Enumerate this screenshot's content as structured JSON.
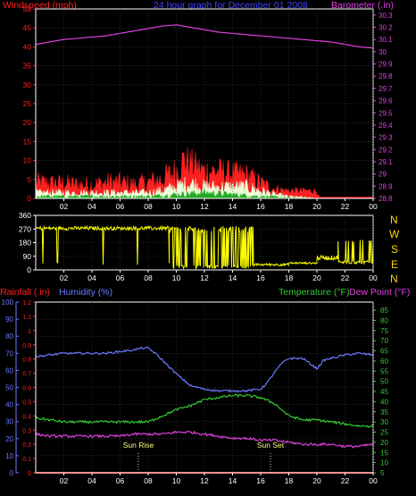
{
  "header": {
    "windspeed_label": "Windspeed (mph)",
    "title": "24 hour graph for  December 01 2008",
    "barometer_label": "Barometer (.in)"
  },
  "compass": {
    "letters": [
      "N",
      "W",
      "S",
      "E",
      "N"
    ]
  },
  "bottom_header": {
    "rainfall_label": "Rainfall (.in)",
    "humidity_label": "Humidity (%)",
    "temperature_label": "Temperature (°F)",
    "dewpoint_label": "Dew Point (°F)"
  },
  "events": {
    "sunrise": "Sun Rise",
    "sunset": "Sun Set"
  },
  "colors": {
    "background": "#000000",
    "windspeed": "#ff2020",
    "gust": "#ff2020",
    "wind_avg": "#e8ffd8",
    "wind_low": "#22aa22",
    "barometer": "#e040e0",
    "direction": "#ffff00",
    "humidity": "#6a78ff",
    "temperature": "#33cc33",
    "dewpoint": "#e040e0",
    "rainfall": "#ff2020",
    "grid": "#444444",
    "axis_frame": "#ffffff",
    "title": "#4040ff",
    "compass": "#ffd700",
    "event_label": "#ffff80"
  },
  "chart_data": [
    {
      "type": "line",
      "name": "wind-barometer",
      "x_unit": "hour",
      "x_ticks": [
        "02",
        "04",
        "06",
        "08",
        "10",
        "12",
        "14",
        "16",
        "18",
        "20",
        "22",
        "00"
      ],
      "x_tick_hours": [
        2,
        4,
        6,
        8,
        10,
        12,
        14,
        16,
        18,
        20,
        22,
        24
      ],
      "xlim": [
        0,
        24
      ],
      "left_axis": {
        "label": "Windspeed (mph)",
        "ticks": [
          0,
          5,
          10,
          15,
          20,
          25,
          30,
          35,
          40,
          45,
          50
        ],
        "ylim": [
          0,
          50
        ]
      },
      "right_axis": {
        "label": "Barometer (.in)",
        "ticks": [
          "28.8",
          "28.9",
          "29",
          "29.1",
          "29.2",
          "29.3",
          "29.4",
          "29.5",
          "29.6",
          "29.7",
          "29.8",
          "29.9",
          "30",
          "30.1",
          "30.2",
          "30.3"
        ],
        "ylim": [
          28.8,
          30.35
        ]
      },
      "series": [
        {
          "name": "Windspeed (mph)",
          "axis": "left",
          "style": "filled-noisy",
          "color_key": "gust",
          "x": [
            0,
            1,
            2,
            3,
            4,
            5,
            6,
            7,
            8,
            9,
            10,
            10.5,
            11,
            11.5,
            12,
            13,
            14,
            15,
            16,
            17,
            18,
            19,
            20,
            20.2
          ],
          "y": [
            4,
            4,
            4,
            3.5,
            3.5,
            4,
            4,
            3.5,
            4,
            5,
            7,
            10,
            9,
            8,
            7,
            7,
            6.5,
            6,
            4,
            2.5,
            2,
            2,
            2,
            0
          ],
          "amp": [
            3,
            2.5,
            2.5,
            2.5,
            2.5,
            3,
            3,
            2.5,
            3,
            3.5,
            4.5,
            5,
            4.5,
            4,
            4,
            4,
            3.5,
            3.5,
            2.5,
            1.5,
            1,
            1,
            1,
            0
          ]
        },
        {
          "name": "",
          "axis": "left",
          "style": "filled-noisy",
          "color_key": "wind_avg",
          "x": [
            0,
            2,
            4,
            6,
            8,
            9,
            10,
            11,
            12,
            13,
            14,
            15,
            16,
            17,
            18,
            19,
            20
          ],
          "y": [
            1.5,
            1.5,
            1.5,
            1.5,
            1.5,
            2,
            3,
            4,
            3,
            3,
            3,
            3,
            2,
            1,
            0.5,
            0.3,
            0
          ],
          "amp": [
            1,
            1,
            1,
            1,
            1,
            1.5,
            2,
            2.5,
            2,
            2,
            2,
            2,
            1.5,
            0.8,
            0.4,
            0.2,
            0
          ]
        },
        {
          "name": "",
          "axis": "left",
          "style": "filled-noisy",
          "color_key": "wind_low",
          "x": [
            0,
            4,
            8,
            10,
            12,
            14,
            16,
            18,
            20
          ],
          "y": [
            0.5,
            0.5,
            0.5,
            1,
            1.5,
            1,
            0.5,
            0.2,
            0
          ],
          "amp": [
            0.5,
            0.5,
            0.5,
            0.8,
            1,
            0.8,
            0.5,
            0.2,
            0
          ]
        },
        {
          "name": "Barometer (.in)",
          "axis": "right",
          "style": "line",
          "color_key": "barometer",
          "x": [
            0,
            1,
            2,
            3,
            4,
            5,
            6,
            7,
            8,
            9,
            10,
            11,
            12,
            13,
            14,
            15,
            16,
            17,
            18,
            19,
            20,
            21,
            22,
            23,
            24
          ],
          "y": [
            30.06,
            30.08,
            30.1,
            30.11,
            30.12,
            30.13,
            30.15,
            30.17,
            30.19,
            30.21,
            30.22,
            30.2,
            30.18,
            30.16,
            30.15,
            30.14,
            30.13,
            30.12,
            30.11,
            30.1,
            30.09,
            30.08,
            30.06,
            30.04,
            30.03
          ]
        }
      ]
    },
    {
      "type": "line",
      "name": "wind-direction",
      "x_ticks": [
        "02",
        "04",
        "06",
        "08",
        "10",
        "12",
        "14",
        "16",
        "18",
        "20",
        "22",
        "00"
      ],
      "xlim": [
        0,
        24
      ],
      "y_axis": {
        "ticks": [
          0,
          90,
          180,
          270,
          360
        ],
        "ylim": [
          0,
          360
        ]
      },
      "series": [
        {
          "name": "Wind Direction",
          "color_key": "direction",
          "segments": [
            {
              "x0": 0,
              "x1": 9.5,
              "base": 275,
              "jitter": 12,
              "spike_prob": 0.03,
              "spike_to": 30
            },
            {
              "x0": 9.5,
              "x1": 15.5,
              "base": 270,
              "jitter": 20,
              "spike_prob": 0.45,
              "spike_to": 10
            },
            {
              "x0": 15.5,
              "x1": 18,
              "base": 35,
              "jitter": 8,
              "spike_prob": 0.0,
              "spike_to": 0
            },
            {
              "x0": 18,
              "x1": 20,
              "base": 45,
              "jitter": 6,
              "spike_prob": 0.0,
              "spike_to": 0
            },
            {
              "x0": 20,
              "x1": 21.5,
              "base": 80,
              "jitter": 14,
              "spike_prob": 0.0,
              "spike_to": 0
            },
            {
              "x0": 21.5,
              "x1": 24,
              "base": 50,
              "jitter": 10,
              "spike_prob": 0.15,
              "spike_to": 180
            }
          ]
        }
      ]
    },
    {
      "type": "line",
      "name": "temp-humidity",
      "x_ticks": [
        "02",
        "04",
        "06",
        "08",
        "10",
        "12",
        "14",
        "16",
        "18",
        "20",
        "22",
        "00"
      ],
      "xlim": [
        0,
        24
      ],
      "left_axis": {
        "label": "Humidity (%)",
        "ticks": [
          0,
          10,
          20,
          30,
          40,
          50,
          60,
          70,
          80,
          90,
          100
        ],
        "ylim": [
          0,
          100
        ]
      },
      "rain_axis": {
        "label": "Rainfall (.in)",
        "ticks": [
          "0",
          "0.1",
          "0.2",
          "0.3",
          "0.4",
          "0.5",
          "0.6",
          "0.7",
          "0.8",
          "0.9",
          "1",
          "1.1",
          "1.2"
        ],
        "ylim": [
          0,
          1.2
        ]
      },
      "right_axis": {
        "label": "Temperature (°F)",
        "ticks": [
          5,
          10,
          15,
          20,
          25,
          30,
          35,
          40,
          45,
          50,
          55,
          60,
          65,
          70,
          75,
          80,
          85
        ],
        "ylim": [
          5,
          89
        ]
      },
      "events": [
        {
          "label": "Sun Rise",
          "hour": 7.3
        },
        {
          "label": "Sun Set",
          "hour": 16.7
        }
      ],
      "series": [
        {
          "name": "Humidity (%)",
          "axis": "left",
          "color_key": "humidity",
          "x": [
            0,
            1,
            2,
            3,
            4,
            5,
            6,
            7,
            7.5,
            8,
            8.5,
            9,
            10,
            11,
            12,
            13,
            14,
            15,
            16,
            16.5,
            17,
            17.5,
            18,
            19,
            19.5,
            20,
            20.5,
            21,
            22,
            23,
            24
          ],
          "y": [
            68,
            69,
            70,
            70,
            70,
            70,
            71,
            72,
            73,
            73,
            70,
            66,
            58,
            51,
            49,
            48,
            48,
            48,
            49,
            53,
            59,
            64,
            67,
            67,
            64,
            61,
            66,
            67,
            69,
            70,
            69
          ]
        },
        {
          "name": "Temperature (°F)",
          "axis": "right",
          "color_key": "temperature",
          "x": [
            0,
            1,
            2,
            3,
            4,
            5,
            6,
            7,
            8,
            9,
            10,
            11,
            12,
            13,
            14,
            15,
            16,
            17,
            18,
            19,
            20,
            21,
            22,
            23,
            24
          ],
          "y": [
            32,
            31,
            30,
            30,
            30,
            30,
            30,
            30,
            30,
            33,
            36,
            38,
            41,
            42,
            43,
            43,
            42,
            39,
            33,
            31,
            31,
            30,
            29,
            28,
            28
          ],
          "dx": [
            0,
            0.5,
            1,
            1.5,
            2,
            2.5,
            3,
            3.5,
            4,
            4.5,
            5,
            5.5,
            6,
            6.5,
            7,
            7.5,
            8,
            8.5,
            9,
            9.5,
            10,
            10.5,
            11,
            11.5,
            12,
            12.5,
            13,
            13.5,
            14,
            14.5,
            15,
            15.5,
            16,
            16.5,
            17,
            17.5,
            18,
            18.5,
            19,
            19.5,
            20,
            20.5,
            21,
            21.5,
            22,
            22.5,
            23,
            23.5,
            24
          ]
        },
        {
          "name": "Dew Point (°F)",
          "axis": "right",
          "color_key": "dewpoint",
          "x": [
            0,
            1,
            2,
            3,
            4,
            5,
            6,
            7,
            8,
            9,
            10,
            11,
            12,
            13,
            14,
            15,
            16,
            17,
            18,
            19,
            20,
            21,
            22,
            23,
            24
          ],
          "y": [
            24,
            23,
            23,
            23,
            23,
            23,
            23,
            24,
            24,
            24,
            25,
            25,
            24,
            23,
            22,
            22,
            21,
            21,
            20,
            19,
            19,
            19,
            18,
            18,
            19
          ]
        },
        {
          "name": "Rainfall (.in)",
          "axis": "rain",
          "color_key": "rainfall",
          "x": [
            0,
            24
          ],
          "y": [
            0,
            0
          ]
        }
      ]
    }
  ]
}
